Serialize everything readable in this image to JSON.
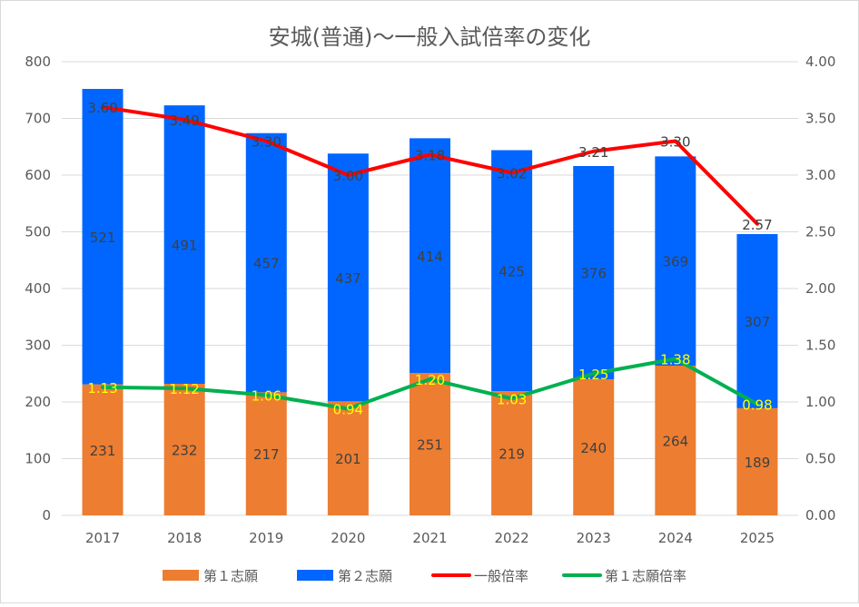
{
  "chart_data": {
    "type": "bar",
    "title": "安城(普通)～一般入試倍率の変化",
    "categories": [
      "2017",
      "2018",
      "2019",
      "2020",
      "2021",
      "2022",
      "2023",
      "2024",
      "2025"
    ],
    "y_left": {
      "range": [
        0,
        800
      ],
      "ticks": [
        "0",
        "100",
        "200",
        "300",
        "400",
        "500",
        "600",
        "700",
        "800"
      ]
    },
    "y_right": {
      "range": [
        0,
        4
      ],
      "ticks": [
        "0.00",
        "0.50",
        "1.00",
        "1.50",
        "2.00",
        "2.50",
        "3.00",
        "3.50",
        "4.00"
      ]
    },
    "grid": true,
    "legend_position": "bottom",
    "series": [
      {
        "name": "第１志願",
        "kind": "bar",
        "stack": "applicants",
        "axis": "left",
        "color": "#ed7d31",
        "values": [
          231,
          232,
          217,
          201,
          251,
          219,
          240,
          264,
          189
        ]
      },
      {
        "name": "第２志願",
        "kind": "bar",
        "stack": "applicants",
        "axis": "left",
        "color": "#0066ff",
        "values": [
          521,
          491,
          457,
          437,
          414,
          425,
          376,
          369,
          307
        ]
      },
      {
        "name": "一般倍率",
        "kind": "line",
        "axis": "right",
        "color": "#ff0000",
        "values": [
          3.6,
          3.49,
          3.3,
          3.0,
          3.18,
          3.02,
          3.21,
          3.3,
          2.57
        ],
        "labels": [
          "3.60",
          "3.49",
          "3.30",
          "3.00",
          "3.18",
          "3.02",
          "3.21",
          "3.30",
          "2.57"
        ]
      },
      {
        "name": "第１志願倍率",
        "kind": "line",
        "axis": "right",
        "color": "#00b050",
        "values": [
          1.13,
          1.12,
          1.06,
          0.94,
          1.2,
          1.03,
          1.25,
          1.38,
          0.98
        ],
        "labels": [
          "1.13",
          "1.12",
          "1.06",
          "0.94",
          "1.20",
          "1.03",
          "1.25",
          "1.38",
          "0.98"
        ]
      }
    ]
  }
}
